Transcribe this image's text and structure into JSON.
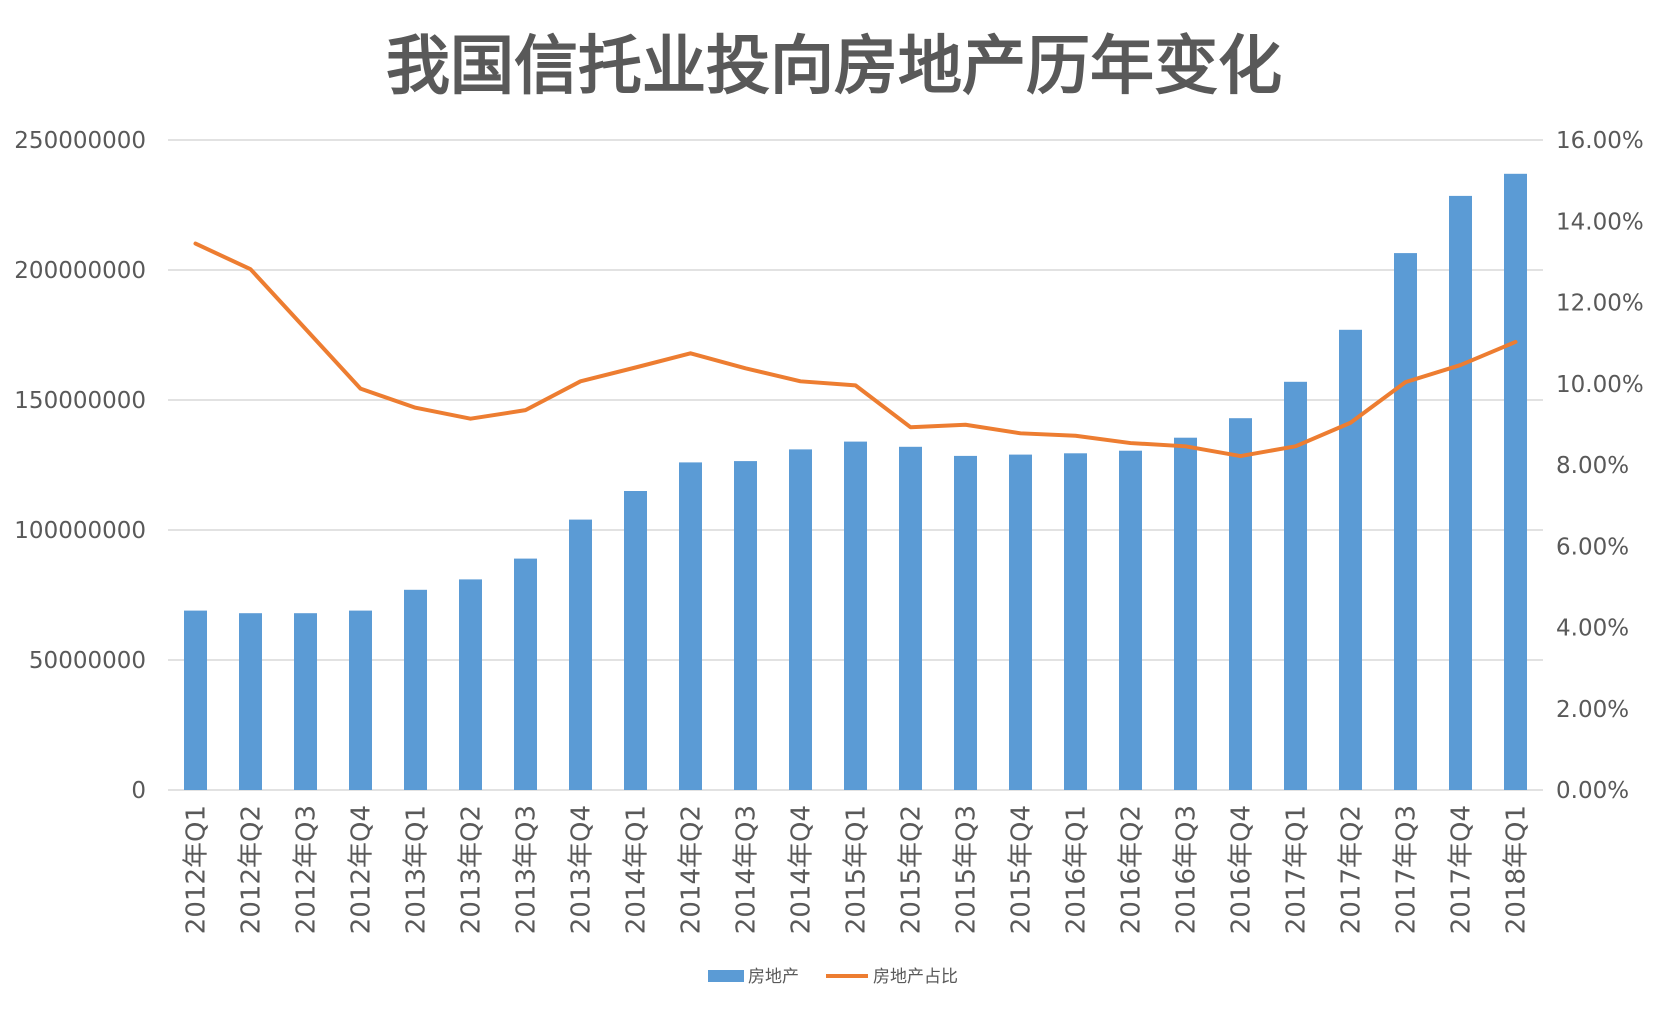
{
  "chart_data": {
    "type": "bar",
    "title": "我国信托业投向房地产历年变化",
    "categories": [
      "2012年Q1",
      "2012年Q2",
      "2012年Q3",
      "2012年Q4",
      "2013年Q1",
      "2013年Q2",
      "2013年Q3",
      "2013年Q4",
      "2014年Q1",
      "2014年Q2",
      "2014年Q3",
      "2014年Q4",
      "2015年Q1",
      "2015年Q2",
      "2015年Q3",
      "2015年Q4",
      "2016年Q1",
      "2016年Q2",
      "2016年Q3",
      "2016年Q4",
      "2017年Q1",
      "2017年Q2",
      "2017年Q3",
      "2017年Q4",
      "2018年Q1"
    ],
    "series": [
      {
        "name": "房地产",
        "type": "bar",
        "axis": "left",
        "values": [
          69000000,
          68000000,
          68000000,
          69000000,
          77000000,
          81000000,
          89000000,
          104000000,
          115000000,
          126000000,
          126500000,
          131000000,
          134000000,
          132000000,
          128500000,
          129000000,
          129500000,
          130500000,
          135500000,
          143000000,
          157000000,
          177000000,
          206500000,
          228500000,
          237000000
        ]
      },
      {
        "name": "房地产占比",
        "type": "line",
        "axis": "right",
        "unit": "%",
        "values": [
          13.45,
          12.82,
          11.35,
          9.88,
          9.41,
          9.14,
          9.35,
          10.06,
          10.4,
          10.75,
          10.38,
          10.06,
          9.96,
          8.93,
          8.99,
          8.78,
          8.72,
          8.54,
          8.46,
          8.22,
          8.46,
          9.04,
          10.04,
          10.46,
          11.03
        ]
      }
    ],
    "ylim": [
      0,
      250000000
    ],
    "y2lim": [
      0,
      16
    ],
    "y_tick_labels": [
      "0",
      "50000000",
      "100000000",
      "150000000",
      "200000000",
      "250000000"
    ],
    "y2_tick_labels": [
      "0.00%",
      "2.00%",
      "4.00%",
      "6.00%",
      "8.00%",
      "10.00%",
      "12.00%",
      "14.00%",
      "16.00%"
    ],
    "grid": true,
    "legend": "bottom",
    "colors": {
      "bar": "#5B9BD5",
      "line": "#ED7D31",
      "grid": "#D9D9D9",
      "text": "#595959"
    }
  }
}
